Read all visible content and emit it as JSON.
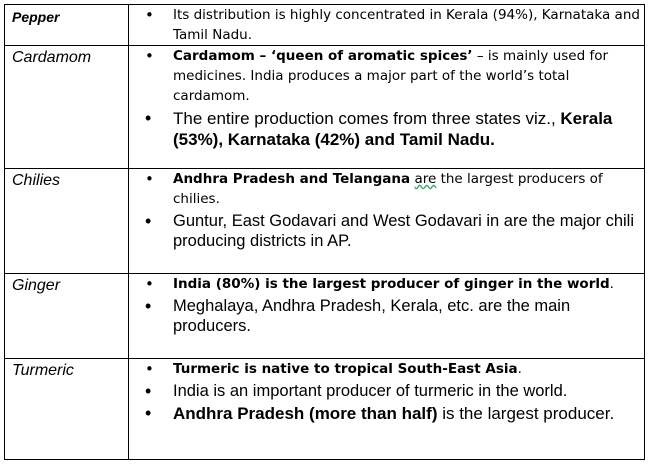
{
  "rows": [
    {
      "name": "Pepper",
      "name_bold": true,
      "bullets": [
        {
          "style": "small",
          "parts": [
            {
              "t": "Its distribution is highly concentrated in Kerala (94%), Karnataka and Tamil Nadu."
            }
          ]
        }
      ]
    },
    {
      "name": "Cardamom",
      "name_bold": false,
      "bullets": [
        {
          "style": "small",
          "parts": [
            {
              "t": "Cardamom – ‘queen of aromatic spices’",
              "b": true
            },
            {
              "t": " – is mainly used for medicines. India produces a major part of the world’s total cardamom."
            }
          ]
        },
        {
          "style": "large xl",
          "parts": [
            {
              "t": "The entire production comes from three states viz., "
            },
            {
              "t": "Kerala (53%), Karnataka (42%) and Tamil Nadu.",
              "b": true
            }
          ]
        }
      ]
    },
    {
      "name": "Chilies",
      "name_bold": false,
      "bullets": [
        {
          "style": "small",
          "parts": [
            {
              "t": "Andhra Pradesh and Telangana",
              "b": true
            },
            {
              "t": " "
            },
            {
              "t": "are",
              "u": true
            },
            {
              "t": " the largest producers of chilies."
            }
          ]
        },
        {
          "style": "large",
          "parts": [
            {
              "t": "Guntur, East Godavari and West Godavari in are the major chili producing districts in AP."
            }
          ]
        }
      ]
    },
    {
      "name": "Ginger",
      "name_bold": false,
      "bullets": [
        {
          "style": "small",
          "parts": [
            {
              "t": "India (80%) is the largest producer of ginger in the world",
              "b": true
            },
            {
              "t": "."
            }
          ]
        },
        {
          "style": "large",
          "parts": [
            {
              "t": "Meghalaya, Andhra Pradesh, Kerala, etc. are the main producers."
            }
          ]
        }
      ]
    },
    {
      "name": "Turmeric",
      "name_bold": false,
      "bullets": [
        {
          "style": "small",
          "parts": [
            {
              "t": "Turmeric is native to tropical South-East Asia",
              "b": true
            },
            {
              "t": "."
            }
          ]
        },
        {
          "style": "large",
          "parts": [
            {
              "t": "India is an important producer of turmeric in the world."
            }
          ]
        },
        {
          "style": "large xl",
          "parts": [
            {
              "t": "Andhra Pradesh (more than half)",
              "b": true
            },
            {
              "t": " is the largest producer."
            }
          ]
        }
      ]
    }
  ]
}
